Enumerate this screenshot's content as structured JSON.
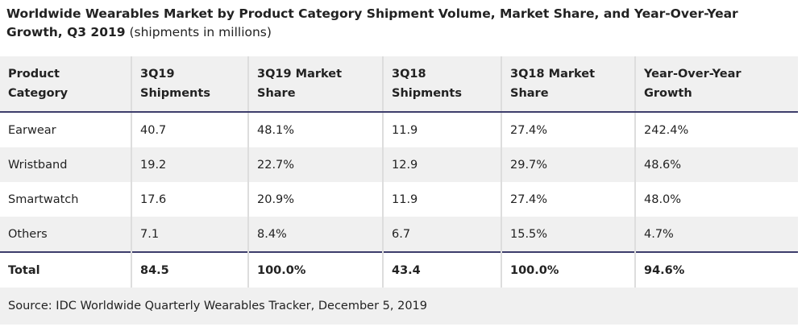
{
  "title": {
    "bold": "Worldwide Wearables Market by Product Category Shipment Volume, Market Share, and Year-Over-Year Growth, Q3 2019",
    "normal": " (shipments in millions)"
  },
  "headers": [
    "Product Category",
    "3Q19 Shipments",
    "3Q19 Market Share",
    "3Q18 Shipments",
    "3Q18 Market Share",
    "Year-Over-Year Growth"
  ],
  "rows": [
    [
      "Earwear",
      "40.7",
      "48.1%",
      "11.9",
      "27.4%",
      "242.4%"
    ],
    [
      "Wristband",
      "19.2",
      "22.7%",
      "12.9",
      "29.7%",
      "48.6%"
    ],
    [
      "Smartwatch",
      "17.6",
      "20.9%",
      "11.9",
      "27.4%",
      "48.0%"
    ],
    [
      "Others",
      "7.1",
      "8.4%",
      "6.7",
      "15.5%",
      "4.7%"
    ]
  ],
  "total": [
    "Total",
    "84.5",
    "100.0%",
    "43.4",
    "100.0%",
    "94.6%"
  ],
  "source": "Source: IDC Worldwide Quarterly Wearables Tracker, December 5, 2019"
}
